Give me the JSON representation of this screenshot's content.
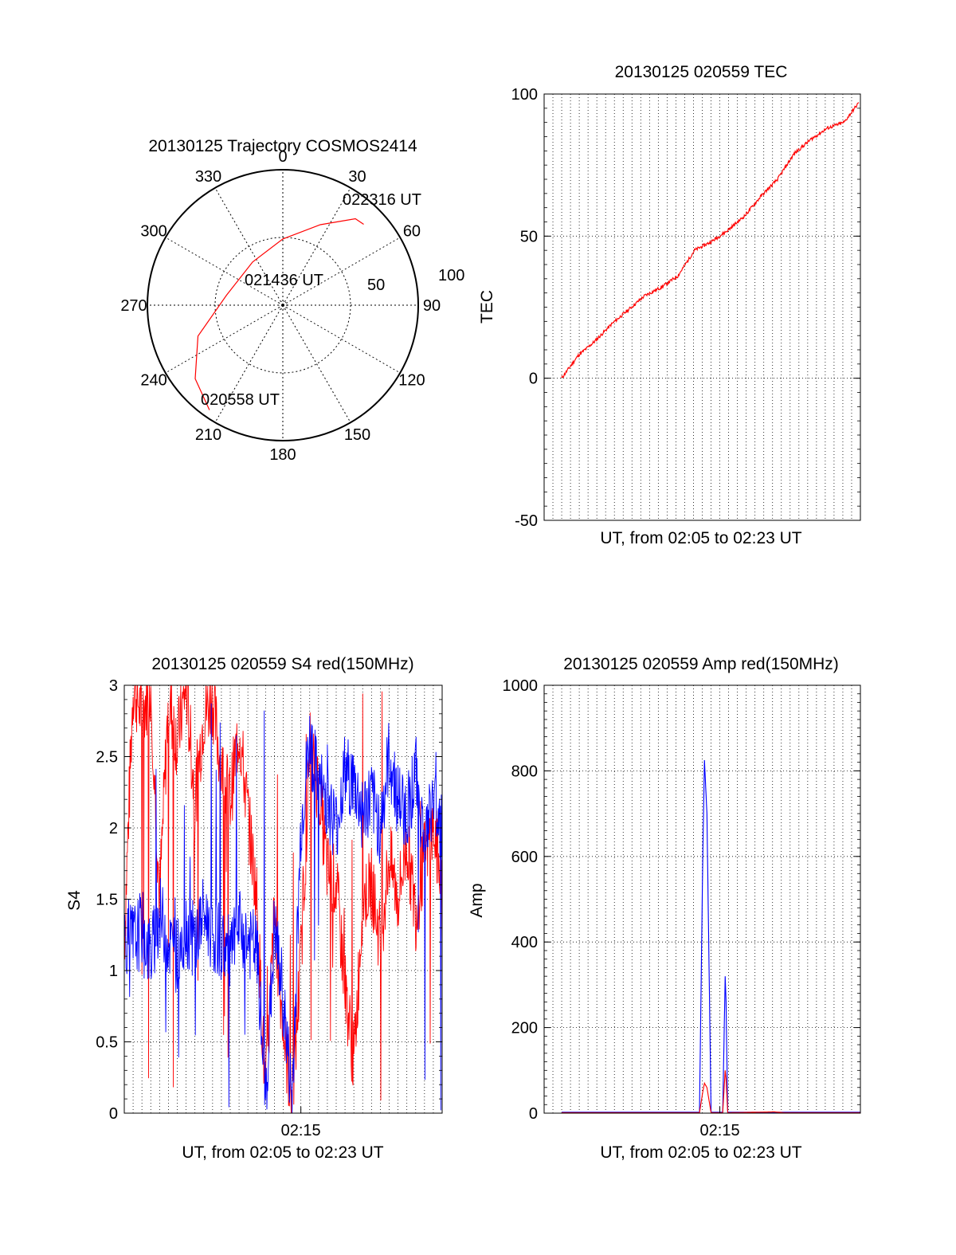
{
  "colors": {
    "red_series": "#ff0000",
    "blue_series": "#0000ff",
    "grid": "#000000"
  },
  "chart_data": [
    {
      "type": "polar-trajectory",
      "title": "20130125 Trajectory COSMOS2414",
      "angle_labels": [
        "0",
        "30",
        "60",
        "90",
        "120",
        "150",
        "180",
        "210",
        "240",
        "270",
        "300",
        "330"
      ],
      "radius_labels": [
        "50",
        "100"
      ],
      "trajectory": {
        "color": "#ff0000",
        "points": [
          {
            "az": 215,
            "el": 5
          },
          {
            "az": 230,
            "el": 14
          },
          {
            "az": 250,
            "el": 30
          },
          {
            "az": 280,
            "el": 52
          },
          {
            "az": 325,
            "el": 55
          },
          {
            "az": 0,
            "el": 46
          },
          {
            "az": 25,
            "el": 31
          },
          {
            "az": 40,
            "el": 15
          },
          {
            "az": 45,
            "el": 14
          }
        ]
      },
      "annotations": [
        {
          "text": "022316 UT",
          "at": "end"
        },
        {
          "text": "021436 UT",
          "at": "middle"
        },
        {
          "text": "020558 UT",
          "at": "start"
        }
      ]
    },
    {
      "type": "line",
      "title": "20130125 020559 TEC",
      "xlabel": "UT, from 02:05 to 02:23 UT",
      "ylabel": "TEC",
      "ylim": [
        -50,
        100
      ],
      "yticks": [
        "100",
        "50",
        "0",
        "-50"
      ],
      "xlim_minutes": [
        0,
        18
      ],
      "grid": true,
      "series": [
        {
          "color": "#ff0000",
          "x_minutes": [
            0,
            1,
            2,
            3,
            4,
            5,
            6,
            7,
            8,
            9,
            10,
            11,
            12,
            13,
            14,
            15,
            16,
            17,
            17.9
          ],
          "values": [
            0,
            8,
            13,
            19,
            24,
            29,
            32,
            36,
            45,
            48,
            52,
            57,
            64,
            70,
            79,
            84,
            88,
            90,
            97
          ]
        }
      ]
    },
    {
      "type": "line",
      "title": "20130125 020559 S4 red(150MHz)",
      "xlabel": "UT, from 02:05 to 02:23 UT",
      "ylabel": "S4",
      "ylim": [
        0,
        3
      ],
      "yticks": [
        "3",
        "2.5",
        "2",
        "1.5",
        "1",
        "0.5",
        "0"
      ],
      "xticks": [
        {
          "label": "02:15",
          "minute": 10
        }
      ],
      "xlim_minutes": [
        0,
        18
      ],
      "grid": true,
      "series": [
        {
          "color": "#ff0000",
          "x_minutes": [
            0,
            0.5,
            1,
            1.5,
            2,
            2.5,
            3,
            3.5,
            4,
            4.5,
            5,
            5.5,
            6,
            6.5,
            7,
            7.5,
            8,
            8.5,
            9,
            9.5,
            10,
            10.5,
            11,
            11.5,
            12,
            12.5,
            13,
            13.5,
            14,
            14.5,
            15,
            15.5,
            16,
            16.5,
            17,
            17.5,
            18
          ],
          "values": [
            1.2,
            3.0,
            2.8,
            3.0,
            1.5,
            2.9,
            2.6,
            3.0,
            2.2,
            2.8,
            2.9,
            2.4,
            2.2,
            2.7,
            2.1,
            1.5,
            0.1,
            1.4,
            0.6,
            0.05,
            1.1,
            2.5,
            2.3,
            1.7,
            1.6,
            0.9,
            0.35,
            1.5,
            1.6,
            1.2,
            1.8,
            1.5,
            1.9,
            1.4,
            1.8,
            2.0,
            1.6
          ]
        },
        {
          "color": "#0000ff",
          "x_minutes": [
            0,
            0.5,
            1,
            1.5,
            2,
            2.5,
            3,
            3.5,
            4,
            4.5,
            5,
            5.5,
            6,
            6.5,
            7,
            7.5,
            8,
            8.5,
            9,
            9.5,
            10,
            10.5,
            11,
            11.5,
            12,
            12.5,
            13,
            13.5,
            14,
            14.5,
            15,
            15.5,
            16,
            16.5,
            17,
            17.5,
            18
          ],
          "values": [
            1.25,
            1.2,
            1.3,
            1.1,
            1.4,
            1.2,
            1.1,
            1.3,
            1.2,
            1.4,
            1.25,
            1.2,
            1.1,
            1.3,
            1.2,
            1.15,
            0.07,
            1.3,
            0.8,
            0.07,
            2.0,
            2.6,
            2.3,
            2.2,
            2.0,
            2.4,
            2.3,
            2.1,
            2.2,
            2.0,
            2.5,
            2.2,
            2.1,
            2.4,
            1.9,
            2.2,
            2.0
          ]
        }
      ]
    },
    {
      "type": "line",
      "title": "20130125 020559 Amp red(150MHz)",
      "xlabel": "UT, from 02:05 to 02:23 UT",
      "ylabel": "Amp",
      "ylim": [
        0,
        1000
      ],
      "yticks": [
        "1000",
        "800",
        "600",
        "400",
        "200",
        "0"
      ],
      "xticks": [
        {
          "label": "02:15",
          "minute": 10
        }
      ],
      "xlim_minutes": [
        0,
        18
      ],
      "grid": true,
      "series": [
        {
          "color": "#0000ff",
          "x_minutes": [
            0,
            7,
            8.3,
            8.5,
            8.6,
            8.75,
            9.0,
            9.7,
            9.85,
            9.9,
            10.0,
            10.2,
            13,
            18
          ],
          "values": [
            2,
            2,
            2,
            600,
            825,
            700,
            2,
            2,
            320,
            260,
            2,
            2,
            2,
            2
          ]
        },
        {
          "color": "#ff0000",
          "x_minutes": [
            0,
            8.3,
            8.5,
            8.6,
            8.75,
            9.0,
            9.7,
            9.85,
            9.9,
            10.0,
            10.2,
            12.8,
            13.4,
            18
          ],
          "values": [
            1,
            1,
            50,
            70,
            60,
            1,
            1,
            100,
            80,
            1,
            1,
            3,
            1,
            1
          ]
        }
      ]
    }
  ]
}
